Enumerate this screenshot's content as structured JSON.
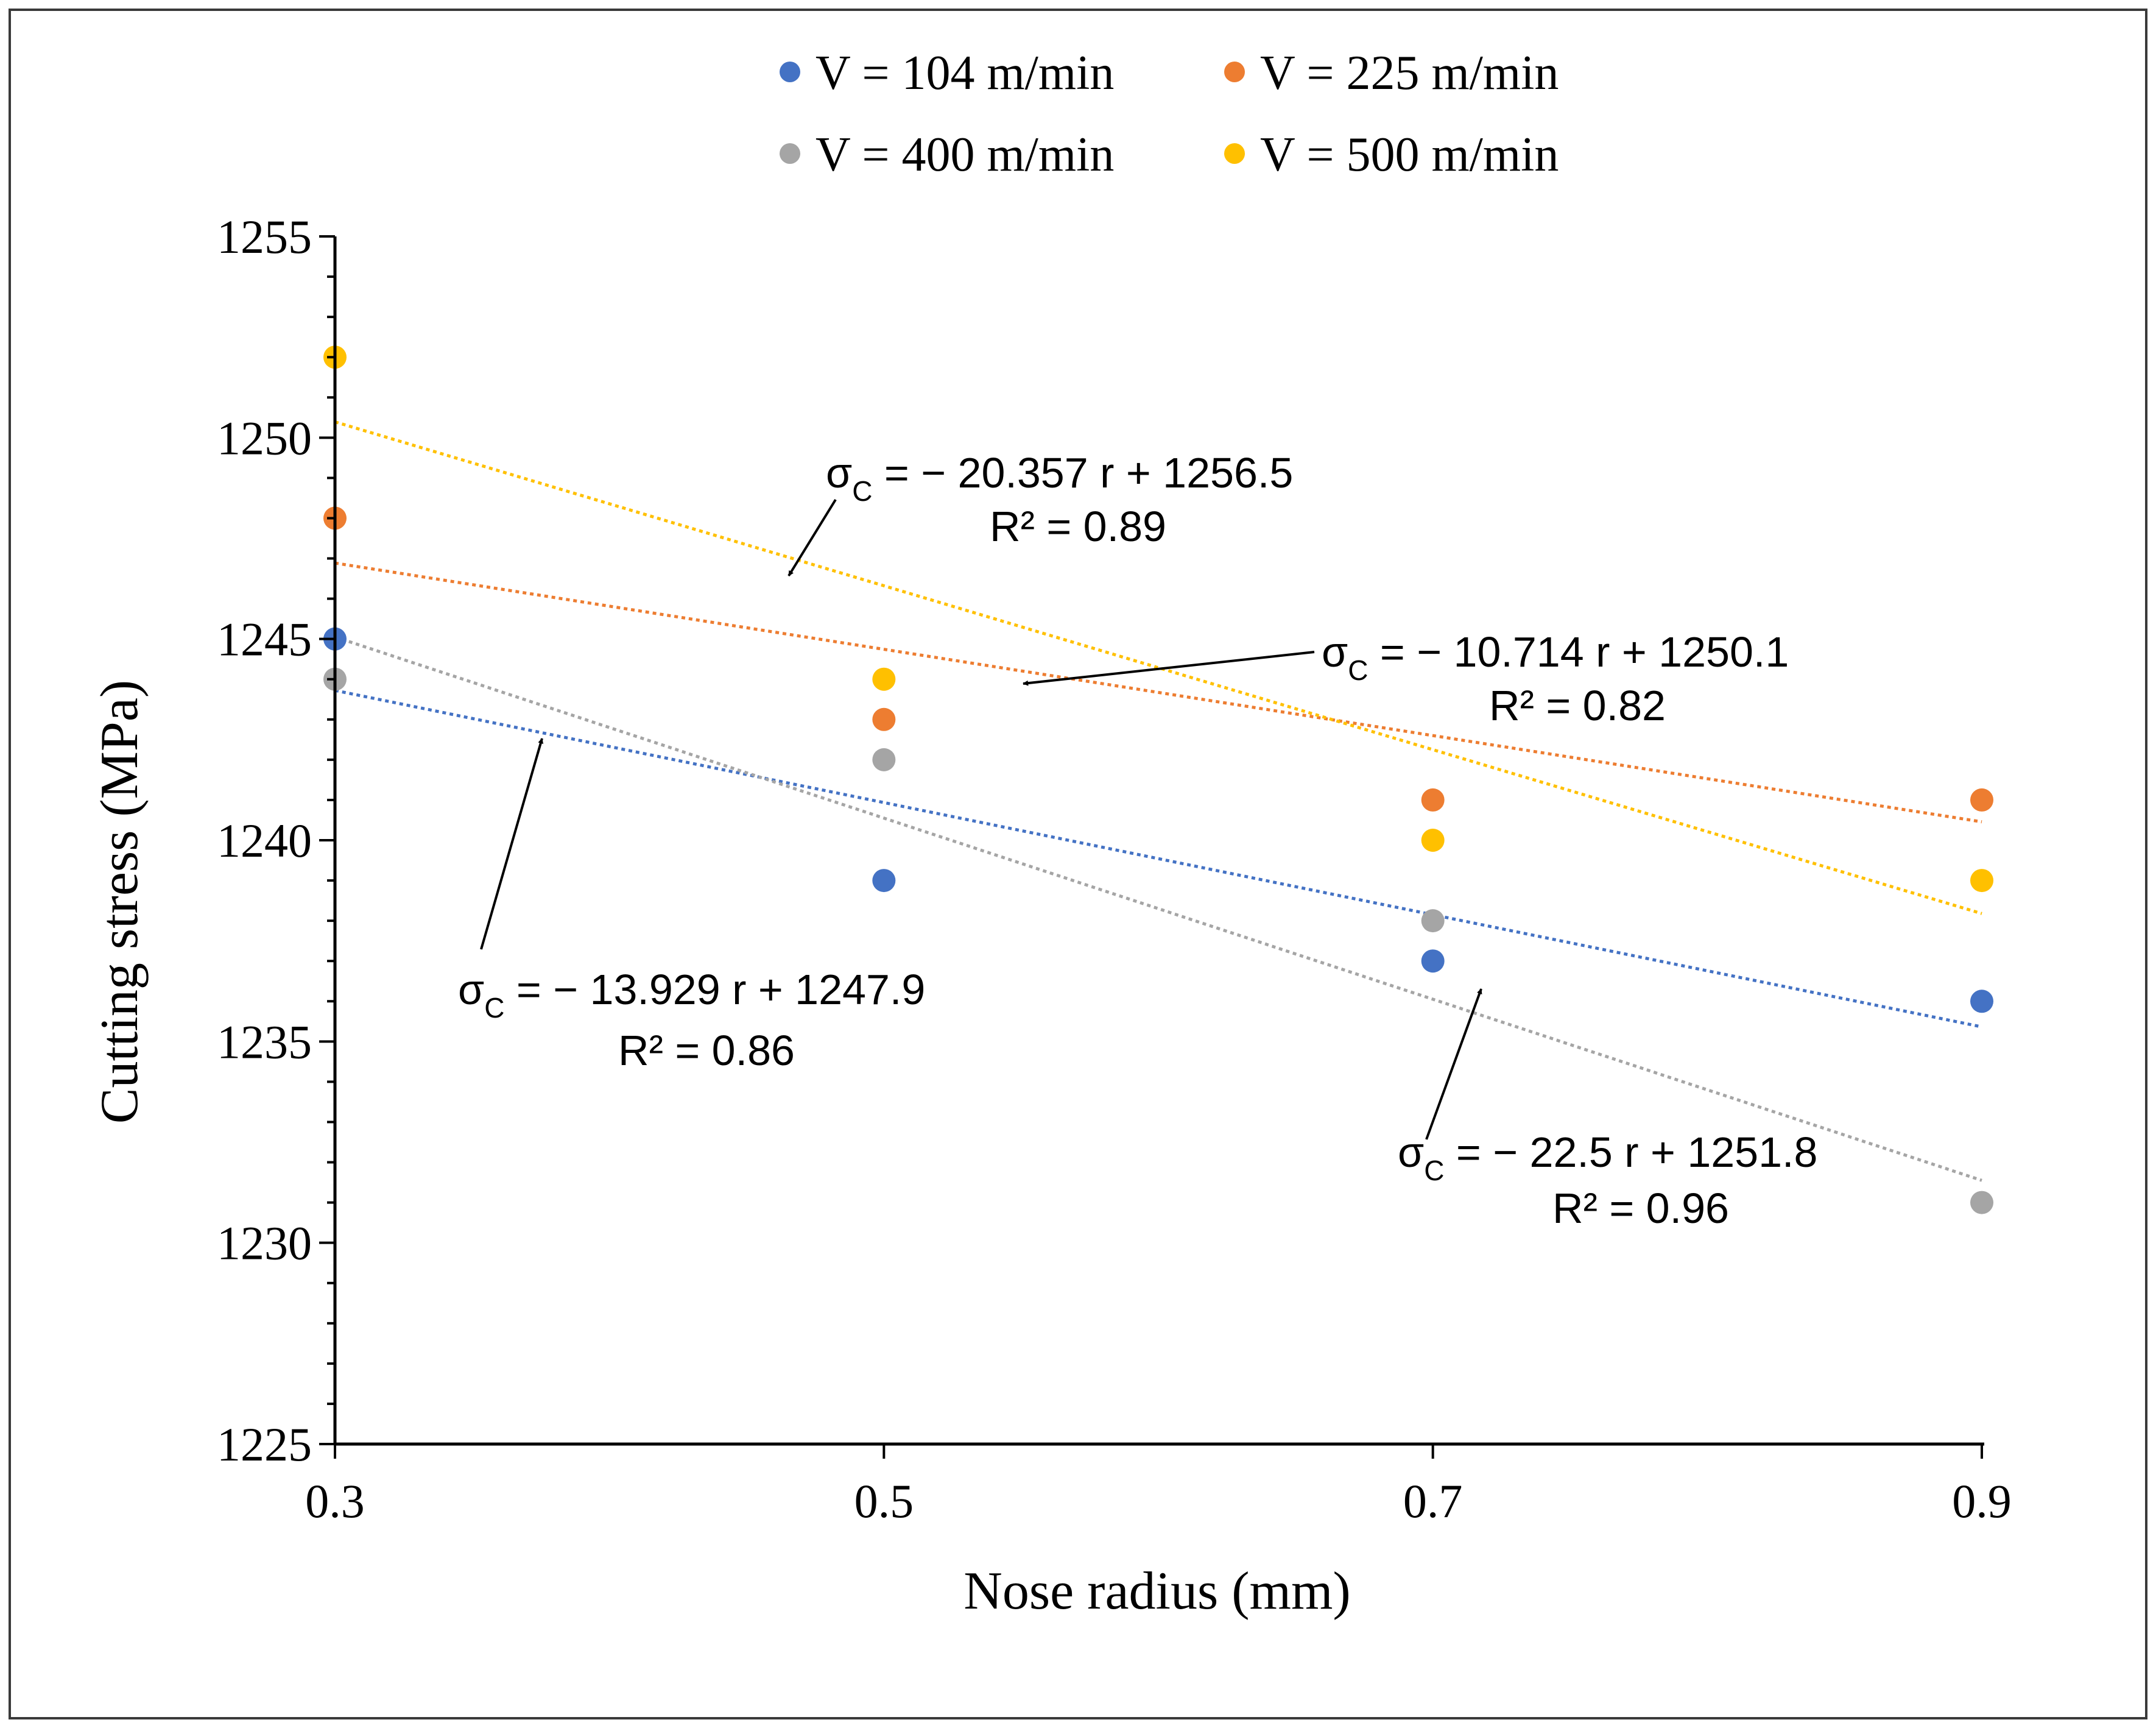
{
  "chart_data": {
    "type": "scatter",
    "xlabel": "Nose radius (mm)",
    "ylabel": "Cutting stress (MPa)",
    "xlim": [
      0.3,
      0.9
    ],
    "ylim": [
      1225,
      1255
    ],
    "xticks": [
      0.3,
      0.5,
      0.7,
      0.9
    ],
    "xtick_labels": [
      "0.3",
      "0.5",
      "0.7",
      "0.9"
    ],
    "yticks": [
      1225,
      1230,
      1235,
      1240,
      1245,
      1250,
      1255
    ],
    "ytick_labels": [
      "1225",
      "1230",
      "1235",
      "1240",
      "1245",
      "1250",
      "1255"
    ],
    "grid": false,
    "legend_position": "top",
    "series": [
      {
        "name": "V = 104 m/min",
        "color": "#4472C4",
        "x": [
          0.3,
          0.5,
          0.7,
          0.9
        ],
        "y": [
          1245,
          1239,
          1237,
          1236
        ],
        "trendline": {
          "slope": -13.929,
          "intercept": 1247.9
        },
        "annotation": {
          "sigma": "σ",
          "sub": "C",
          "equation": " = − 13.929 r + 1247.9",
          "r2": "R² = 0.86"
        }
      },
      {
        "name": "V = 225 m/min",
        "color": "#ED7D31",
        "x": [
          0.3,
          0.5,
          0.7,
          0.9
        ],
        "y": [
          1248,
          1243,
          1241,
          1241
        ],
        "trendline": {
          "slope": -10.714,
          "intercept": 1250.1
        },
        "annotation": {
          "sigma": "σ",
          "sub": "C",
          "equation": " = − 10.714 r + 1250.1",
          "r2": "R² = 0.82"
        }
      },
      {
        "name": "V = 400 m/min",
        "color": "#A5A5A5",
        "x": [
          0.3,
          0.5,
          0.7,
          0.9
        ],
        "y": [
          1244,
          1242,
          1238,
          1231
        ],
        "trendline": {
          "slope": -22.5,
          "intercept": 1251.8
        },
        "annotation": {
          "sigma": "σ",
          "sub": "C",
          "equation": " = − 22.5 r + 1251.8",
          "r2": "R² = 0.96"
        }
      },
      {
        "name": "V = 500 m/min",
        "color": "#FFC000",
        "x": [
          0.3,
          0.5,
          0.7,
          0.9
        ],
        "y": [
          1252,
          1244,
          1240,
          1239
        ],
        "trendline": {
          "slope": -20.357,
          "intercept": 1256.5
        },
        "annotation": {
          "sigma": "σ",
          "sub": "C",
          "equation": " = − 20.357 r + 1256.5",
          "r2": "R² = 0.89"
        }
      }
    ]
  }
}
